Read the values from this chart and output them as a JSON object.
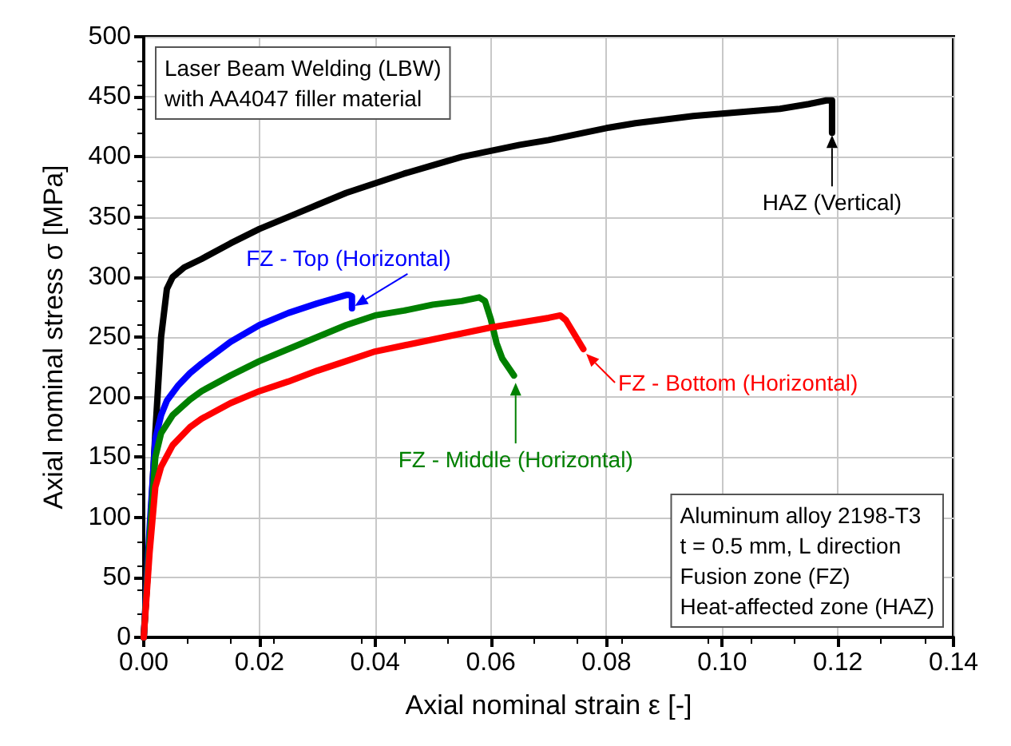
{
  "chart_data": {
    "type": "line",
    "xlabel": "Axial nominal strain ε [-]",
    "ylabel": "Axial nominal stress σ [MPa]",
    "xlim": [
      0,
      0.14
    ],
    "xticks": [
      {
        "value": 0,
        "label": "0.00"
      },
      {
        "value": 0.02,
        "label": "0.02"
      },
      {
        "value": 0.04,
        "label": "0.04"
      },
      {
        "value": 0.06,
        "label": "0.06"
      },
      {
        "value": 0.08,
        "label": "0.08"
      },
      {
        "value": 0.1,
        "label": "0.10"
      },
      {
        "value": 0.12,
        "label": "0.12"
      },
      {
        "value": 0.14,
        "label": "0.14"
      }
    ],
    "ylim": [
      0,
      500
    ],
    "yticks": [
      0,
      50,
      100,
      150,
      200,
      250,
      300,
      350,
      400,
      450,
      500
    ],
    "grid": true,
    "marker": "none",
    "line_style": "solid",
    "series": [
      {
        "color": "#000000",
        "x": [
          0,
          0.001,
          0.002,
          0.003,
          0.004,
          0.005,
          0.007,
          0.01,
          0.015,
          0.02,
          0.025,
          0.03,
          0.035,
          0.04,
          0.045,
          0.05,
          0.055,
          0.06,
          0.065,
          0.07,
          0.075,
          0.08,
          0.085,
          0.09,
          0.095,
          0.1,
          0.105,
          0.11,
          0.115,
          0.118,
          0.119,
          0.119
        ],
        "values": [
          0,
          80,
          170,
          250,
          290,
          300,
          308,
          315,
          328,
          340,
          350,
          360,
          370,
          378,
          386,
          393,
          400,
          405,
          410,
          414,
          419,
          424,
          428,
          431,
          434,
          436,
          438,
          440,
          444,
          447,
          447,
          420
        ]
      },
      {
        "color": "#0000ff",
        "x": [
          0,
          0.001,
          0.002,
          0.003,
          0.004,
          0.006,
          0.008,
          0.01,
          0.015,
          0.02,
          0.025,
          0.03,
          0.035,
          0.0355,
          0.036,
          0.036
        ],
        "values": [
          0,
          90,
          165,
          185,
          197,
          210,
          220,
          228,
          246,
          260,
          270,
          278,
          285,
          285,
          284,
          274
        ]
      },
      {
        "color": "#008000",
        "x": [
          0,
          0.001,
          0.002,
          0.003,
          0.005,
          0.008,
          0.01,
          0.015,
          0.02,
          0.025,
          0.03,
          0.035,
          0.04,
          0.045,
          0.05,
          0.055,
          0.058,
          0.059,
          0.06,
          0.061,
          0.062,
          0.063,
          0.064
        ],
        "values": [
          0,
          80,
          150,
          170,
          185,
          198,
          205,
          218,
          230,
          240,
          250,
          260,
          268,
          272,
          277,
          280,
          283,
          280,
          265,
          245,
          232,
          225,
          218
        ]
      },
      {
        "color": "#ff0000",
        "x": [
          0,
          0.001,
          0.002,
          0.003,
          0.005,
          0.008,
          0.01,
          0.015,
          0.02,
          0.025,
          0.03,
          0.035,
          0.04,
          0.045,
          0.05,
          0.055,
          0.06,
          0.065,
          0.07,
          0.072,
          0.073,
          0.074,
          0.075,
          0.076
        ],
        "values": [
          0,
          70,
          125,
          142,
          160,
          175,
          182,
          195,
          205,
          213,
          222,
          230,
          238,
          243,
          248,
          253,
          258,
          262,
          266,
          268,
          264,
          256,
          248,
          240
        ]
      }
    ],
    "annotations": [
      {
        "text": "HAZ (Vertical)",
        "x": 0.119,
        "y": 418
      },
      {
        "text": "FZ - Top (Horizontal)",
        "x": 0.0365,
        "y": 276
      },
      {
        "text": "FZ - Middle (Horizontal)",
        "x": 0.0643,
        "y": 212
      },
      {
        "text": "FZ - Bottom (Horizontal)",
        "x": 0.0765,
        "y": 236
      },
      "Laser Beam Welding (LBW)\nwith AA4047 filler material",
      "Aluminum alloy 2198-T3\nt = 0.5 mm, L direction\nFusion zone (FZ)\nHeat-affected zone (HAZ)"
    ]
  }
}
